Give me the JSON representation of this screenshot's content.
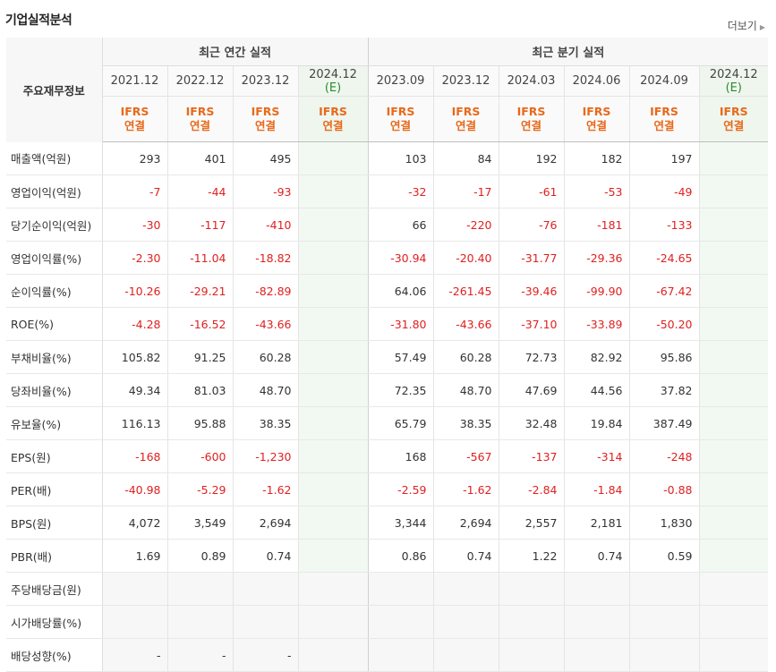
{
  "section_title": "기업실적분석",
  "more_label": "더보기",
  "header": {
    "row_label": "주요재무정보",
    "annual_group": "최근 연간 실적",
    "quarter_group": "최근 분기 실적",
    "columns": [
      {
        "date": "2021.12",
        "est": "",
        "ifrs1": "IFRS",
        "ifrs2": "연결"
      },
      {
        "date": "2022.12",
        "est": "",
        "ifrs1": "IFRS",
        "ifrs2": "연결"
      },
      {
        "date": "2023.12",
        "est": "",
        "ifrs1": "IFRS",
        "ifrs2": "연결"
      },
      {
        "date": "2024.12",
        "est": "(E)",
        "ifrs1": "IFRS",
        "ifrs2": "연결"
      },
      {
        "date": "2023.09",
        "est": "",
        "ifrs1": "IFRS",
        "ifrs2": "연결"
      },
      {
        "date": "2023.12",
        "est": "",
        "ifrs1": "IFRS",
        "ifrs2": "연결"
      },
      {
        "date": "2024.03",
        "est": "",
        "ifrs1": "IFRS",
        "ifrs2": "연결"
      },
      {
        "date": "2024.06",
        "est": "",
        "ifrs1": "IFRS",
        "ifrs2": "연결"
      },
      {
        "date": "2024.09",
        "est": "",
        "ifrs1": "IFRS",
        "ifrs2": "연결"
      },
      {
        "date": "2024.12",
        "est": "(E)",
        "ifrs1": "IFRS",
        "ifrs2": "연결"
      }
    ]
  },
  "rows": [
    {
      "label": "매출액(억원)",
      "values": [
        "293",
        "401",
        "495",
        "",
        "103",
        "84",
        "192",
        "182",
        "197",
        ""
      ]
    },
    {
      "label": "영업이익(억원)",
      "values": [
        "-7",
        "-44",
        "-93",
        "",
        "-32",
        "-17",
        "-61",
        "-53",
        "-49",
        ""
      ]
    },
    {
      "label": "당기순이익(억원)",
      "values": [
        "-30",
        "-117",
        "-410",
        "",
        "66",
        "-220",
        "-76",
        "-181",
        "-133",
        ""
      ]
    },
    {
      "label": "영업이익률(%)",
      "values": [
        "-2.30",
        "-11.04",
        "-18.82",
        "",
        "-30.94",
        "-20.40",
        "-31.77",
        "-29.36",
        "-24.65",
        ""
      ]
    },
    {
      "label": "순이익률(%)",
      "values": [
        "-10.26",
        "-29.21",
        "-82.89",
        "",
        "64.06",
        "-261.45",
        "-39.46",
        "-99.90",
        "-67.42",
        ""
      ]
    },
    {
      "label": "ROE(%)",
      "values": [
        "-4.28",
        "-16.52",
        "-43.66",
        "",
        "-31.80",
        "-43.66",
        "-37.10",
        "-33.89",
        "-50.20",
        ""
      ]
    },
    {
      "label": "부채비율(%)",
      "values": [
        "105.82",
        "91.25",
        "60.28",
        "",
        "57.49",
        "60.28",
        "72.73",
        "82.92",
        "95.86",
        ""
      ]
    },
    {
      "label": "당좌비율(%)",
      "values": [
        "49.34",
        "81.03",
        "48.70",
        "",
        "72.35",
        "48.70",
        "47.69",
        "44.56",
        "37.82",
        ""
      ]
    },
    {
      "label": "유보율(%)",
      "values": [
        "116.13",
        "95.88",
        "38.35",
        "",
        "65.79",
        "38.35",
        "32.48",
        "19.84",
        "387.49",
        ""
      ]
    },
    {
      "label": "EPS(원)",
      "values": [
        "-168",
        "-600",
        "-1,230",
        "",
        "168",
        "-567",
        "-137",
        "-314",
        "-248",
        ""
      ]
    },
    {
      "label": "PER(배)",
      "values": [
        "-40.98",
        "-5.29",
        "-1.62",
        "",
        "-2.59",
        "-1.62",
        "-2.84",
        "-1.84",
        "-0.88",
        ""
      ]
    },
    {
      "label": "BPS(원)",
      "values": [
        "4,072",
        "3,549",
        "2,694",
        "",
        "3,344",
        "2,694",
        "2,557",
        "2,181",
        "1,830",
        ""
      ]
    },
    {
      "label": "PBR(배)",
      "values": [
        "1.69",
        "0.89",
        "0.74",
        "",
        "0.86",
        "0.74",
        "1.22",
        "0.74",
        "0.59",
        ""
      ]
    },
    {
      "label": "주당배당금(원)",
      "values": [
        "",
        "",
        "",
        "",
        "",
        "",
        "",
        "",
        "",
        ""
      ]
    },
    {
      "label": "시가배당률(%)",
      "values": [
        "",
        "",
        "",
        "",
        "",
        "",
        "",
        "",
        "",
        ""
      ]
    },
    {
      "label": "배당성향(%)",
      "values": [
        "-",
        "-",
        "-",
        "",
        "",
        "",
        "",
        "",
        "",
        ""
      ]
    }
  ]
}
